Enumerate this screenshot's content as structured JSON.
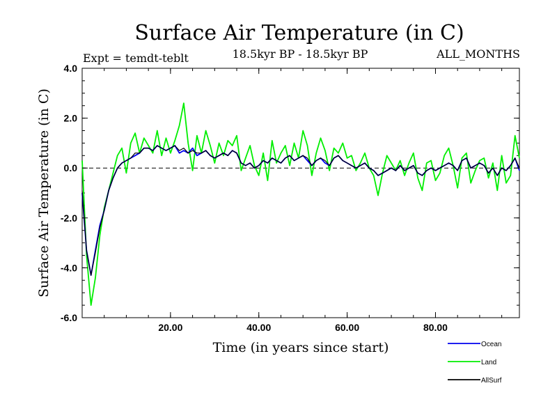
{
  "chart_data": {
    "type": "line",
    "title": "Surface Air Temperature (in C)",
    "subtitle_left": "Expt = temdt-teblt",
    "subtitle_center": "18.5kyr BP - 18.5kyr BP",
    "subtitle_right": "ALL_MONTHS",
    "xlabel": "Time (in years since start)",
    "ylabel": "Surface Air Temperature (in C)",
    "xlim": [
      0,
      99
    ],
    "ylim": [
      -6.0,
      4.0
    ],
    "x_ticks": [
      20,
      40,
      60,
      80
    ],
    "x_tick_labels": [
      "20.00",
      "40.00",
      "60.00",
      "80.00"
    ],
    "y_ticks": [
      -6,
      -4,
      -2,
      0,
      2,
      4
    ],
    "y_tick_labels": [
      "-6.0",
      "-4.0",
      "-2.0",
      "0.0",
      "2.0",
      "4.0"
    ],
    "reference_line": 0.0,
    "legend_position": "bottom-right",
    "series": [
      {
        "name": "Land",
        "color": "#00ee00",
        "x": [
          0,
          1,
          2,
          3,
          4,
          5,
          6,
          7,
          8,
          9,
          10,
          11,
          12,
          13,
          14,
          15,
          16,
          17,
          18,
          19,
          20,
          21,
          22,
          23,
          24,
          25,
          26,
          27,
          28,
          29,
          30,
          31,
          32,
          33,
          34,
          35,
          36,
          37,
          38,
          39,
          40,
          41,
          42,
          43,
          44,
          45,
          46,
          47,
          48,
          49,
          50,
          51,
          52,
          53,
          54,
          55,
          56,
          57,
          58,
          59,
          60,
          61,
          62,
          63,
          64,
          65,
          66,
          67,
          68,
          69,
          70,
          71,
          72,
          73,
          74,
          75,
          76,
          77,
          78,
          79,
          80,
          81,
          82,
          83,
          84,
          85,
          86,
          87,
          88,
          89,
          90,
          91,
          92,
          93,
          94,
          95,
          96,
          97,
          98,
          99
        ],
        "values": [
          0.3,
          -3.5,
          -5.5,
          -4.4,
          -2.7,
          -1.6,
          -0.9,
          -0.2,
          0.5,
          0.8,
          -0.2,
          1.0,
          1.4,
          0.6,
          1.2,
          0.9,
          0.6,
          1.5,
          0.5,
          1.2,
          0.6,
          1.1,
          1.7,
          2.6,
          1.0,
          -0.1,
          1.3,
          0.6,
          1.5,
          0.9,
          0.2,
          1.0,
          0.5,
          1.1,
          0.9,
          1.3,
          -0.1,
          0.4,
          0.9,
          0.1,
          -0.3,
          0.6,
          -0.5,
          1.1,
          0.2,
          0.6,
          0.9,
          0.1,
          1.0,
          0.4,
          1.5,
          0.9,
          -0.3,
          0.6,
          1.2,
          0.7,
          -0.1,
          0.8,
          0.6,
          1.0,
          0.4,
          0.5,
          -0.1,
          0.2,
          0.6,
          0.0,
          -0.3,
          -1.1,
          -0.2,
          0.5,
          0.2,
          -0.1,
          0.3,
          -0.3,
          0.2,
          0.6,
          -0.4,
          -0.9,
          0.2,
          0.3,
          -0.5,
          -0.2,
          0.5,
          0.8,
          0.1,
          -0.8,
          0.4,
          0.6,
          -0.6,
          -0.1,
          0.3,
          0.4,
          -0.4,
          0.2,
          -0.9,
          0.5,
          -0.6,
          -0.3,
          1.3,
          0.4
        ]
      },
      {
        "name": "Ocean",
        "color": "#0000ee",
        "x": [
          0,
          1,
          2,
          3,
          4,
          5,
          6,
          7,
          8,
          9,
          10,
          11,
          12,
          13,
          14,
          15,
          16,
          17,
          18,
          19,
          20,
          21,
          22,
          23,
          24,
          25,
          26,
          27,
          28,
          29,
          30,
          31,
          32,
          33,
          34,
          35,
          36,
          37,
          38,
          39,
          40,
          41,
          42,
          43,
          44,
          45,
          46,
          47,
          48,
          49,
          50,
          51,
          52,
          53,
          54,
          55,
          56,
          57,
          58,
          59,
          60,
          61,
          62,
          63,
          64,
          65,
          66,
          67,
          68,
          69,
          70,
          71,
          72,
          73,
          74,
          75,
          76,
          77,
          78,
          79,
          80,
          81,
          82,
          83,
          84,
          85,
          86,
          87,
          88,
          89,
          90,
          91,
          92,
          93,
          94,
          95,
          96,
          97,
          98,
          99
        ],
        "values": [
          -1.0,
          -3.3,
          -4.3,
          -3.3,
          -2.3,
          -1.7,
          -0.9,
          -0.4,
          0.0,
          0.2,
          0.3,
          0.4,
          0.5,
          0.6,
          0.8,
          0.8,
          0.7,
          0.9,
          0.8,
          0.7,
          0.8,
          0.9,
          0.6,
          0.7,
          0.6,
          0.8,
          0.5,
          0.6,
          0.7,
          0.5,
          0.4,
          0.5,
          0.6,
          0.5,
          0.7,
          0.6,
          0.2,
          0.1,
          0.2,
          0.0,
          0.1,
          0.3,
          0.2,
          0.4,
          0.3,
          0.2,
          0.4,
          0.5,
          0.3,
          0.4,
          0.5,
          0.3,
          0.1,
          0.3,
          0.4,
          0.2,
          0.1,
          0.4,
          0.5,
          0.3,
          0.2,
          0.1,
          0.0,
          0.1,
          0.2,
          0.0,
          -0.1,
          -0.3,
          -0.2,
          -0.1,
          0.0,
          -0.1,
          0.1,
          -0.1,
          0.0,
          0.1,
          -0.2,
          -0.3,
          -0.1,
          0.0,
          -0.1,
          0.0,
          0.1,
          0.2,
          0.1,
          -0.1,
          0.3,
          0.4,
          0.0,
          0.1,
          0.2,
          0.1,
          -0.2,
          0.0,
          -0.3,
          0.0,
          -0.1,
          0.1,
          0.4,
          -0.1
        ]
      },
      {
        "name": "AllSurf",
        "color": "#000000",
        "x": [
          0,
          1,
          2,
          3,
          4,
          5,
          6,
          7,
          8,
          9,
          10,
          11,
          12,
          13,
          14,
          15,
          16,
          17,
          18,
          19,
          20,
          21,
          22,
          23,
          24,
          25,
          26,
          27,
          28,
          29,
          30,
          31,
          32,
          33,
          34,
          35,
          36,
          37,
          38,
          39,
          40,
          41,
          42,
          43,
          44,
          45,
          46,
          47,
          48,
          49,
          50,
          51,
          52,
          53,
          54,
          55,
          56,
          57,
          58,
          59,
          60,
          61,
          62,
          63,
          64,
          65,
          66,
          67,
          68,
          69,
          70,
          71,
          72,
          73,
          74,
          75,
          76,
          77,
          78,
          79,
          80,
          81,
          82,
          83,
          84,
          85,
          86,
          87,
          88,
          89,
          90,
          91,
          92,
          93,
          94,
          95,
          96,
          97,
          98,
          99
        ],
        "values": [
          -0.9,
          -3.3,
          -4.3,
          -3.4,
          -2.4,
          -1.7,
          -0.9,
          -0.4,
          0.0,
          0.2,
          0.3,
          0.4,
          0.6,
          0.6,
          0.8,
          0.8,
          0.7,
          0.9,
          0.8,
          0.7,
          0.8,
          0.9,
          0.7,
          0.8,
          0.6,
          0.7,
          0.6,
          0.6,
          0.7,
          0.5,
          0.4,
          0.5,
          0.6,
          0.5,
          0.7,
          0.6,
          0.2,
          0.1,
          0.2,
          0.0,
          0.1,
          0.3,
          0.2,
          0.4,
          0.3,
          0.2,
          0.4,
          0.5,
          0.3,
          0.4,
          0.5,
          0.4,
          0.1,
          0.3,
          0.4,
          0.3,
          0.1,
          0.4,
          0.5,
          0.3,
          0.2,
          0.1,
          0.0,
          0.1,
          0.2,
          0.0,
          -0.1,
          -0.3,
          -0.2,
          -0.1,
          0.0,
          -0.1,
          0.1,
          -0.1,
          0.0,
          0.1,
          -0.2,
          -0.3,
          -0.1,
          0.0,
          -0.1,
          0.0,
          0.1,
          0.2,
          0.1,
          -0.1,
          0.3,
          0.4,
          0.0,
          0.1,
          0.2,
          0.1,
          -0.2,
          0.0,
          -0.3,
          0.0,
          -0.1,
          0.1,
          0.4,
          0.0
        ]
      }
    ],
    "legend_order": [
      "Ocean",
      "Land",
      "AllSurf"
    ]
  }
}
